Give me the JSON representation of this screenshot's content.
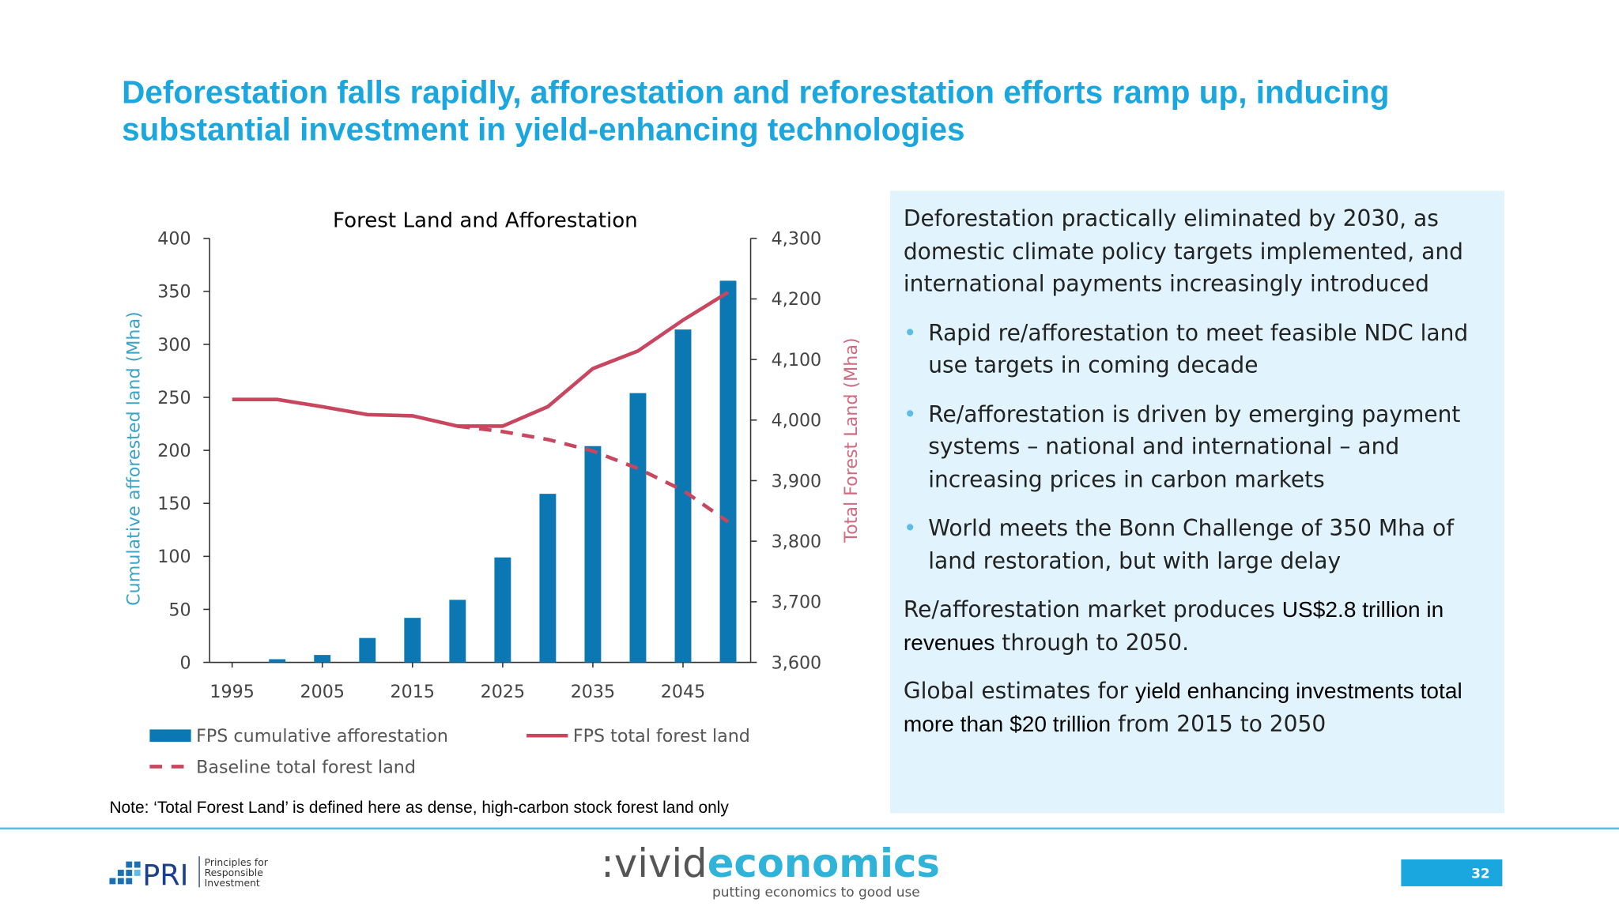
{
  "header": {
    "title": "Deforestation falls rapidly, afforestation and reforestation efforts ramp up, inducing substantial investment in yield-enhancing technologies"
  },
  "chart_data": {
    "type": "bar",
    "title": "Forest Land and Afforestation",
    "x": [
      1995,
      2000,
      2005,
      2010,
      2015,
      2020,
      2025,
      2030,
      2035,
      2040,
      2045,
      2050
    ],
    "xlim": [
      1992.5,
      2052.5
    ],
    "xticks": [
      1995,
      2005,
      2015,
      2025,
      2035,
      2045
    ],
    "ylim": [
      0,
      400
    ],
    "yticks": [
      0,
      50,
      100,
      150,
      200,
      250,
      300,
      350,
      400
    ],
    "y2lim": [
      3600,
      4300
    ],
    "y2ticks": [
      {
        "value": 3600,
        "label": "3,600"
      },
      {
        "value": 3700,
        "label": "3,700"
      },
      {
        "value": 3800,
        "label": "3,800"
      },
      {
        "value": 3900,
        "label": "3,900"
      },
      {
        "value": 4000,
        "label": "4,000"
      },
      {
        "value": 4100,
        "label": "4,100"
      },
      {
        "value": 4200,
        "label": "4,200"
      },
      {
        "value": 4300,
        "label": "4,300"
      }
    ],
    "ylabel": "Cumulative afforested land (Mha)",
    "y2label": "Total Forest Land (Mha)",
    "series": [
      {
        "name": "FPS cumulative afforestation",
        "type": "bar",
        "color": "#0b78b4",
        "values": [
          0,
          3,
          7,
          23,
          42,
          59,
          99,
          159,
          204,
          254,
          314,
          360
        ]
      },
      {
        "name": "FPS total forest land",
        "type": "line",
        "axis": "y2",
        "color": "#c8475e",
        "values": [
          4034,
          4034,
          4022,
          4009,
          4007,
          3990,
          3990,
          4022,
          4085,
          4114,
          4165,
          4211
        ]
      },
      {
        "name": "Baseline total forest land",
        "type": "line",
        "axis": "y2",
        "dashed": true,
        "color": "#c8475e",
        "values": [
          null,
          null,
          null,
          null,
          null,
          3990,
          3981,
          3968,
          3949,
          3920,
          3884,
          3832
        ]
      }
    ]
  },
  "panel": {
    "intro": "Deforestation practically eliminated by 2030, as domestic climate policy targets implemented, and international payments increasingly introduced",
    "bullets": [
      "Rapid re/afforestation to meet feasible NDC land use targets in coming decade",
      "Re/afforestation is driven by emerging payment systems – national and international – and increasing prices in carbon markets",
      "World meets the Bonn Challenge of 350 Mha of land restoration, but with large delay"
    ],
    "p2": [
      "Re/afforestation market produces ",
      "US$2.8 trillion in revenues",
      " through to 2050."
    ],
    "p3": [
      "Global estimates for ",
      "yield enhancing investments total more than $20 trillion",
      " from 2015 to 2050"
    ]
  },
  "note": "Note: ‘Total Forest Land’ is defined here as dense, high-carbon stock forest land only",
  "footer": {
    "pri": "PRI",
    "pri_sub": [
      "Principles for",
      "Responsible",
      "Investment"
    ],
    "vivid": ":vivid",
    "economics": "economics",
    "tagline": "putting economics to good use",
    "page": "32"
  }
}
